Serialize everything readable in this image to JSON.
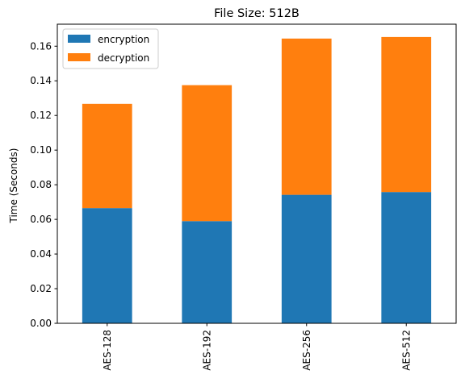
{
  "chart_data": {
    "type": "bar",
    "stacked": true,
    "title": "File Size: 512B",
    "xlabel": "",
    "ylabel": "Time (Seconds)",
    "categories": [
      "AES-128",
      "AES-192",
      "AES-256",
      "AES-512"
    ],
    "series": [
      {
        "name": "encryption",
        "color": "#1f77b4",
        "values": [
          0.0665,
          0.059,
          0.0742,
          0.0758
        ]
      },
      {
        "name": "decryption",
        "color": "#ff7f0e",
        "values": [
          0.0602,
          0.0785,
          0.0902,
          0.0895
        ]
      }
    ],
    "ylim": [
      0,
      0.1727
    ],
    "yticks": [
      0.0,
      0.02,
      0.04,
      0.06,
      0.08,
      0.1,
      0.12,
      0.14,
      0.16
    ],
    "ytick_labels": [
      "0.00",
      "0.02",
      "0.04",
      "0.06",
      "0.08",
      "0.10",
      "0.12",
      "0.14",
      "0.16"
    ],
    "legend_position": "top-left",
    "grid": false
  }
}
